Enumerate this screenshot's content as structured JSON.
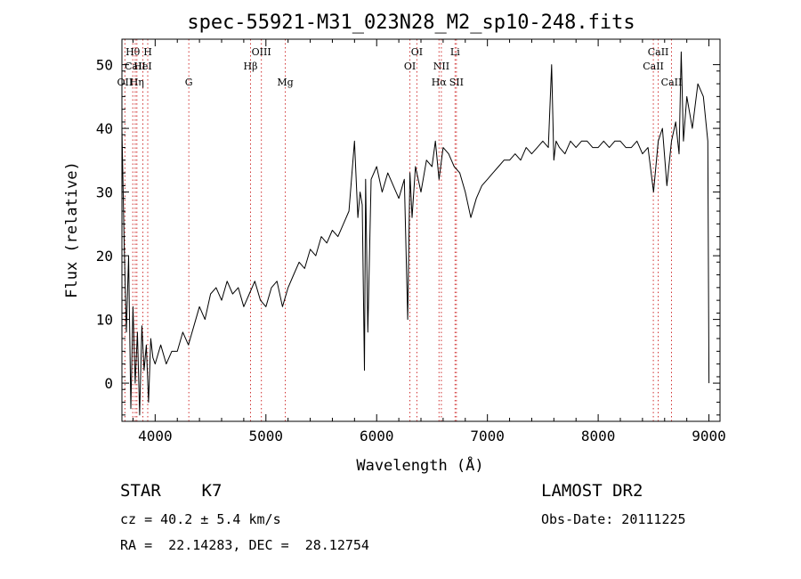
{
  "chart_data": {
    "type": "line",
    "title": "spec-55921-M31_023N28_M2_sp10-248.fits",
    "xlabel": "Wavelength (Å)",
    "ylabel": "Flux (relative)",
    "xlim": [
      3700,
      9100
    ],
    "ylim": [
      -6,
      54
    ],
    "xticks": [
      4000,
      5000,
      6000,
      7000,
      8000,
      9000
    ],
    "yticks": [
      0,
      10,
      20,
      30,
      40,
      50
    ],
    "grid": false,
    "series": [
      {
        "x": [
          3700,
          3720,
          3740,
          3760,
          3780,
          3800,
          3820,
          3840,
          3860,
          3880,
          3900,
          3920,
          3940,
          3960,
          3980,
          4000,
          4050,
          4100,
          4150,
          4200,
          4250,
          4300,
          4350,
          4400,
          4450,
          4500,
          4550,
          4600,
          4650,
          4700,
          4750,
          4800,
          4850,
          4900,
          4950,
          5000,
          5050,
          5100,
          5150,
          5200,
          5250,
          5300,
          5350,
          5400,
          5450,
          5500,
          5550,
          5600,
          5650,
          5700,
          5750,
          5800,
          5830,
          5850,
          5870,
          5890,
          5900,
          5920,
          5950,
          6000,
          6050,
          6100,
          6150,
          6200,
          6250,
          6280,
          6300,
          6320,
          6350,
          6400,
          6450,
          6500,
          6530,
          6563,
          6600,
          6650,
          6700,
          6750,
          6800,
          6850,
          6900,
          6950,
          7000,
          7050,
          7100,
          7150,
          7200,
          7250,
          7300,
          7350,
          7400,
          7450,
          7500,
          7550,
          7580,
          7600,
          7620,
          7650,
          7700,
          7750,
          7800,
          7850,
          7900,
          7950,
          8000,
          8050,
          8100,
          8150,
          8200,
          8250,
          8300,
          8350,
          8400,
          8450,
          8500,
          8542,
          8580,
          8620,
          8662,
          8700,
          8730,
          8750,
          8770,
          8800,
          8850,
          8900,
          8950,
          8990,
          9000
        ],
        "y": [
          40,
          22,
          8,
          20,
          -4,
          12,
          0,
          8,
          -5,
          9,
          2,
          6,
          -3,
          7,
          4,
          3,
          6,
          3,
          5,
          5,
          8,
          6,
          9,
          12,
          10,
          14,
          15,
          13,
          16,
          14,
          15,
          12,
          14,
          16,
          13,
          12,
          15,
          16,
          12,
          15,
          17,
          19,
          18,
          21,
          20,
          23,
          22,
          24,
          23,
          25,
          27,
          38,
          26,
          30,
          28,
          2,
          32,
          8,
          32,
          34,
          30,
          33,
          31,
          29,
          32,
          10,
          33,
          26,
          34,
          30,
          35,
          34,
          38,
          32,
          37,
          36,
          34,
          33,
          30,
          26,
          29,
          31,
          32,
          33,
          34,
          35,
          35,
          36,
          35,
          37,
          36,
          37,
          38,
          37,
          50,
          35,
          38,
          37,
          36,
          38,
          37,
          38,
          38,
          37,
          37,
          38,
          37,
          38,
          38,
          37,
          37,
          38,
          36,
          37,
          30,
          38,
          40,
          31,
          38,
          41,
          36,
          52,
          38,
          45,
          40,
          47,
          45,
          38,
          0
        ]
      }
    ],
    "line_markers": [
      {
        "label": "Hθ",
        "x": 3798,
        "row": 1
      },
      {
        "label": "CaII",
        "x": 3820,
        "row": 2
      },
      {
        "label": "OII",
        "x": 3727,
        "row": 3
      },
      {
        "label": "H",
        "x": 3933,
        "row": 1
      },
      {
        "label": "HeI",
        "x": 3889,
        "row": 2
      },
      {
        "label": "Hη",
        "x": 3835,
        "row": 3
      },
      {
        "label": "G",
        "x": 4304,
        "row": 3
      },
      {
        "label": "OIII",
        "x": 4959,
        "row": 1
      },
      {
        "label": "Hβ",
        "x": 4861,
        "row": 2
      },
      {
        "label": "Mg",
        "x": 5175,
        "row": 3
      },
      {
        "label": "OI",
        "x": 6363,
        "row": 1
      },
      {
        "label": "OI",
        "x": 6300,
        "row": 2
      },
      {
        "label": "Li",
        "x": 6708,
        "row": 1
      },
      {
        "label": "NII",
        "x": 6584,
        "row": 2
      },
      {
        "label": "Hα",
        "x": 6563,
        "row": 3
      },
      {
        "label": "SII",
        "x": 6720,
        "row": 3
      },
      {
        "label": "CaII",
        "x": 8542,
        "row": 1
      },
      {
        "label": "CaII",
        "x": 8498,
        "row": 2
      },
      {
        "label": "CaII",
        "x": 8662,
        "row": 3
      }
    ]
  },
  "info": {
    "class": "STAR    K7",
    "cz": "cz = 40.2 ± 5.4 km/s",
    "coords": "RA =  22.14283, DEC =  28.12754",
    "survey": "LAMOST DR2",
    "obs_date": "Obs-Date: 20111225"
  },
  "colors": {
    "line": "#000000",
    "marker": "#d03030",
    "background": "#ffffff"
  }
}
